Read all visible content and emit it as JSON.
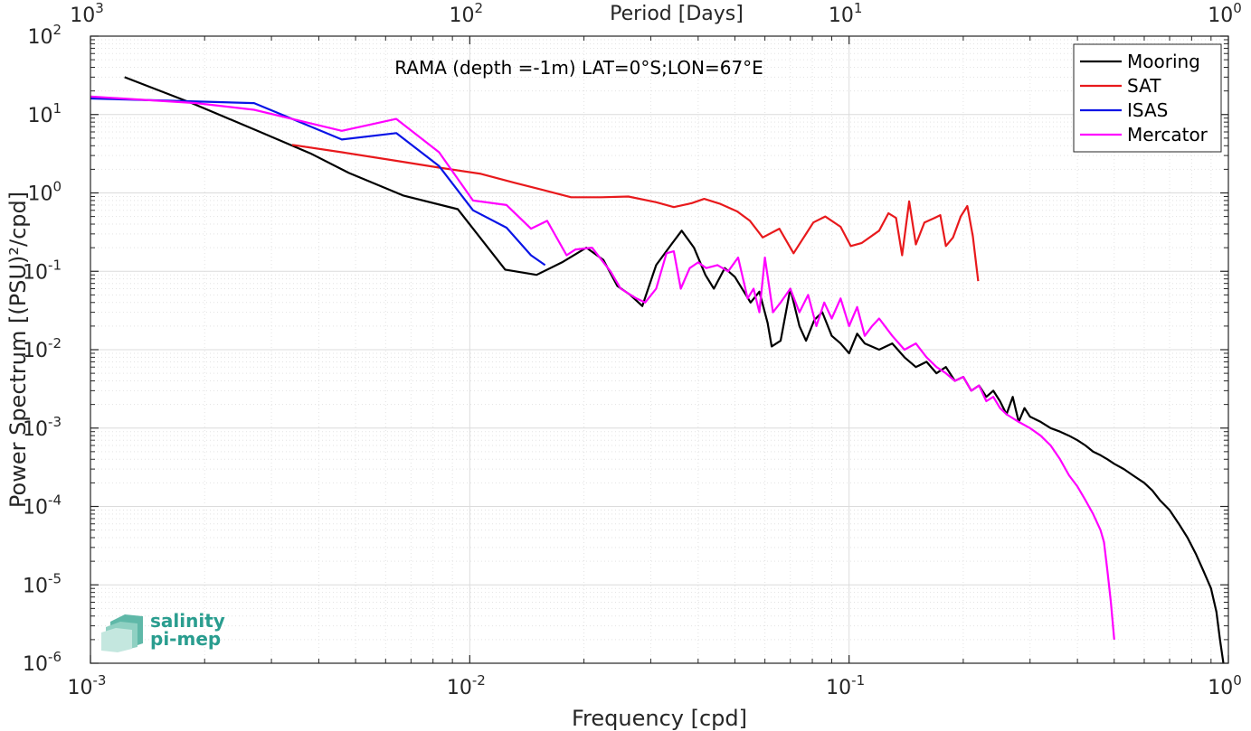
{
  "chart_data": {
    "type": "line",
    "title": "RAMA (depth =-1m) LAT=0°S;LON=67°E",
    "xlabel": "Frequency [cpd]",
    "ylabel": "Power Spectrum [(PSU)²/cpd]",
    "top_xlabel": "Period [Days]",
    "x_scale": "log",
    "y_scale": "log",
    "xlim": [
      0.001,
      1
    ],
    "ylim": [
      1e-06,
      100
    ],
    "grid": true,
    "legend_position": "top-right",
    "x_ticks": [
      {
        "base": "10",
        "exp": "-3",
        "value": 0.001
      },
      {
        "base": "10",
        "exp": "-2",
        "value": 0.01
      },
      {
        "base": "10",
        "exp": "-1",
        "value": 0.1
      },
      {
        "base": "10",
        "exp": "0",
        "value": 1
      }
    ],
    "top_ticks": [
      {
        "base": "10",
        "exp": "3",
        "value": 0.001
      },
      {
        "base": "10",
        "exp": "2",
        "value": 0.01
      },
      {
        "base": "10",
        "exp": "1",
        "value": 0.1
      },
      {
        "base": "10",
        "exp": "0",
        "value": 1
      }
    ],
    "y_ticks": [
      {
        "base": "10",
        "exp": "2",
        "value": 100
      },
      {
        "base": "10",
        "exp": "1",
        "value": 10
      },
      {
        "base": "10",
        "exp": "0",
        "value": 1
      },
      {
        "base": "10",
        "exp": "-1",
        "value": 0.1
      },
      {
        "base": "10",
        "exp": "-2",
        "value": 0.01
      },
      {
        "base": "10",
        "exp": "-3",
        "value": 0.001
      },
      {
        "base": "10",
        "exp": "-4",
        "value": 0.0001
      },
      {
        "base": "10",
        "exp": "-5",
        "value": 1e-05
      },
      {
        "base": "10",
        "exp": "-6",
        "value": 1e-06
      }
    ],
    "series": [
      {
        "name": "Mooring",
        "color": "#000000",
        "points": [
          [
            0.00123,
            30
          ],
          [
            0.00185,
            14
          ],
          [
            0.0028,
            6
          ],
          [
            0.0038,
            3.2
          ],
          [
            0.0048,
            1.8
          ],
          [
            0.0067,
            0.92
          ],
          [
            0.0093,
            0.62
          ],
          [
            0.0124,
            0.105
          ],
          [
            0.015,
            0.09
          ],
          [
            0.0175,
            0.13
          ],
          [
            0.0203,
            0.2
          ],
          [
            0.0225,
            0.14
          ],
          [
            0.0245,
            0.065
          ],
          [
            0.0265,
            0.05
          ],
          [
            0.0285,
            0.036
          ],
          [
            0.031,
            0.12
          ],
          [
            0.034,
            0.22
          ],
          [
            0.0362,
            0.33
          ],
          [
            0.039,
            0.2
          ],
          [
            0.0418,
            0.09
          ],
          [
            0.044,
            0.06
          ],
          [
            0.047,
            0.11
          ],
          [
            0.05,
            0.085
          ],
          [
            0.055,
            0.04
          ],
          [
            0.058,
            0.055
          ],
          [
            0.061,
            0.022
          ],
          [
            0.0625,
            0.011
          ],
          [
            0.066,
            0.013
          ],
          [
            0.07,
            0.06
          ],
          [
            0.074,
            0.02
          ],
          [
            0.077,
            0.013
          ],
          [
            0.081,
            0.024
          ],
          [
            0.085,
            0.03
          ],
          [
            0.09,
            0.015
          ],
          [
            0.095,
            0.012
          ],
          [
            0.1,
            0.009
          ],
          [
            0.105,
            0.016
          ],
          [
            0.11,
            0.012
          ],
          [
            0.12,
            0.01
          ],
          [
            0.13,
            0.012
          ],
          [
            0.14,
            0.008
          ],
          [
            0.15,
            0.006
          ],
          [
            0.16,
            0.007
          ],
          [
            0.17,
            0.005
          ],
          [
            0.18,
            0.006
          ],
          [
            0.19,
            0.004
          ],
          [
            0.2,
            0.0045
          ],
          [
            0.21,
            0.003
          ],
          [
            0.22,
            0.0035
          ],
          [
            0.23,
            0.0025
          ],
          [
            0.24,
            0.003
          ],
          [
            0.25,
            0.0022
          ],
          [
            0.26,
            0.0015
          ],
          [
            0.27,
            0.0025
          ],
          [
            0.28,
            0.0012
          ],
          [
            0.29,
            0.0018
          ],
          [
            0.3,
            0.0014
          ],
          [
            0.32,
            0.0012
          ],
          [
            0.34,
            0.001
          ],
          [
            0.36,
            0.0009
          ],
          [
            0.38,
            0.0008
          ],
          [
            0.4,
            0.0007
          ],
          [
            0.42,
            0.0006
          ],
          [
            0.44,
            0.0005
          ],
          [
            0.46,
            0.00045
          ],
          [
            0.48,
            0.0004
          ],
          [
            0.5,
            0.00035
          ],
          [
            0.53,
            0.0003
          ],
          [
            0.56,
            0.00025
          ],
          [
            0.6,
            0.0002
          ],
          [
            0.63,
            0.00016
          ],
          [
            0.66,
            0.00012
          ],
          [
            0.7,
            9e-05
          ],
          [
            0.74,
            6e-05
          ],
          [
            0.78,
            4e-05
          ],
          [
            0.82,
            2.5e-05
          ],
          [
            0.86,
            1.5e-05
          ],
          [
            0.9,
            9e-06
          ],
          [
            0.93,
            4.5e-06
          ],
          [
            0.95,
            2e-06
          ],
          [
            0.97,
            1e-06
          ]
        ]
      },
      {
        "name": "SAT",
        "color": "#e8191c",
        "points": [
          [
            0.0034,
            4.1
          ],
          [
            0.0046,
            3.3
          ],
          [
            0.0063,
            2.6
          ],
          [
            0.0083,
            2.1
          ],
          [
            0.0107,
            1.75
          ],
          [
            0.0131,
            1.35
          ],
          [
            0.0155,
            1.1
          ],
          [
            0.0185,
            0.88
          ],
          [
            0.0222,
            0.88
          ],
          [
            0.0262,
            0.9
          ],
          [
            0.031,
            0.76
          ],
          [
            0.0345,
            0.66
          ],
          [
            0.0385,
            0.74
          ],
          [
            0.0415,
            0.84
          ],
          [
            0.0456,
            0.73
          ],
          [
            0.0507,
            0.58
          ],
          [
            0.0548,
            0.44
          ],
          [
            0.0592,
            0.27
          ],
          [
            0.0655,
            0.35
          ],
          [
            0.0714,
            0.17
          ],
          [
            0.0805,
            0.42
          ],
          [
            0.0865,
            0.5
          ],
          [
            0.095,
            0.37
          ],
          [
            0.101,
            0.21
          ],
          [
            0.108,
            0.23
          ],
          [
            0.12,
            0.33
          ],
          [
            0.127,
            0.55
          ],
          [
            0.133,
            0.48
          ],
          [
            0.138,
            0.16
          ],
          [
            0.144,
            0.78
          ],
          [
            0.15,
            0.22
          ],
          [
            0.158,
            0.42
          ],
          [
            0.168,
            0.48
          ],
          [
            0.174,
            0.52
          ],
          [
            0.18,
            0.21
          ],
          [
            0.188,
            0.27
          ],
          [
            0.197,
            0.5
          ],
          [
            0.205,
            0.68
          ],
          [
            0.212,
            0.28
          ],
          [
            0.219,
            0.075
          ]
        ]
      },
      {
        "name": "ISAS",
        "color": "#0a14e6",
        "points": [
          [
            0.001,
            16
          ],
          [
            0.0027,
            14
          ],
          [
            0.0046,
            4.8
          ],
          [
            0.0064,
            5.8
          ],
          [
            0.0083,
            2.2
          ],
          [
            0.0102,
            0.6
          ],
          [
            0.0125,
            0.36
          ],
          [
            0.0145,
            0.16
          ],
          [
            0.0158,
            0.12
          ]
        ]
      },
      {
        "name": "Mercator",
        "color": "#ff00ff",
        "points": [
          [
            0.001,
            17
          ],
          [
            0.0019,
            14
          ],
          [
            0.0027,
            11.5
          ],
          [
            0.0046,
            6.2
          ],
          [
            0.0064,
            8.8
          ],
          [
            0.0083,
            3.3
          ],
          [
            0.0102,
            0.8
          ],
          [
            0.0125,
            0.7
          ],
          [
            0.0145,
            0.35
          ],
          [
            0.016,
            0.44
          ],
          [
            0.018,
            0.16
          ],
          [
            0.019,
            0.19
          ],
          [
            0.021,
            0.2
          ],
          [
            0.0235,
            0.1
          ],
          [
            0.025,
            0.06
          ],
          [
            0.0275,
            0.045
          ],
          [
            0.029,
            0.04
          ],
          [
            0.031,
            0.06
          ],
          [
            0.033,
            0.17
          ],
          [
            0.0345,
            0.18
          ],
          [
            0.036,
            0.06
          ],
          [
            0.038,
            0.11
          ],
          [
            0.04,
            0.13
          ],
          [
            0.042,
            0.11
          ],
          [
            0.045,
            0.12
          ],
          [
            0.048,
            0.1
          ],
          [
            0.051,
            0.15
          ],
          [
            0.054,
            0.045
          ],
          [
            0.056,
            0.06
          ],
          [
            0.058,
            0.03
          ],
          [
            0.06,
            0.15
          ],
          [
            0.063,
            0.03
          ],
          [
            0.066,
            0.04
          ],
          [
            0.07,
            0.06
          ],
          [
            0.074,
            0.03
          ],
          [
            0.078,
            0.05
          ],
          [
            0.082,
            0.02
          ],
          [
            0.086,
            0.04
          ],
          [
            0.09,
            0.025
          ],
          [
            0.095,
            0.045
          ],
          [
            0.1,
            0.02
          ],
          [
            0.105,
            0.035
          ],
          [
            0.11,
            0.015
          ],
          [
            0.115,
            0.02
          ],
          [
            0.12,
            0.025
          ],
          [
            0.13,
            0.015
          ],
          [
            0.14,
            0.01
          ],
          [
            0.15,
            0.012
          ],
          [
            0.16,
            0.008
          ],
          [
            0.17,
            0.006
          ],
          [
            0.18,
            0.005
          ],
          [
            0.19,
            0.004
          ],
          [
            0.2,
            0.0045
          ],
          [
            0.21,
            0.003
          ],
          [
            0.22,
            0.0035
          ],
          [
            0.23,
            0.0022
          ],
          [
            0.24,
            0.0025
          ],
          [
            0.25,
            0.0018
          ],
          [
            0.26,
            0.0015
          ],
          [
            0.28,
            0.0012
          ],
          [
            0.3,
            0.001
          ],
          [
            0.32,
            0.0008
          ],
          [
            0.34,
            0.0006
          ],
          [
            0.36,
            0.0004
          ],
          [
            0.38,
            0.00025
          ],
          [
            0.4,
            0.00018
          ],
          [
            0.42,
            0.00012
          ],
          [
            0.44,
            8e-05
          ],
          [
            0.46,
            5e-05
          ],
          [
            0.47,
            3.5e-05
          ],
          [
            0.48,
            1.5e-05
          ],
          [
            0.49,
            6e-06
          ],
          [
            0.5,
            2e-06
          ]
        ]
      }
    ]
  },
  "logo": {
    "line1": "salinity",
    "line2": "pi-mep"
  }
}
